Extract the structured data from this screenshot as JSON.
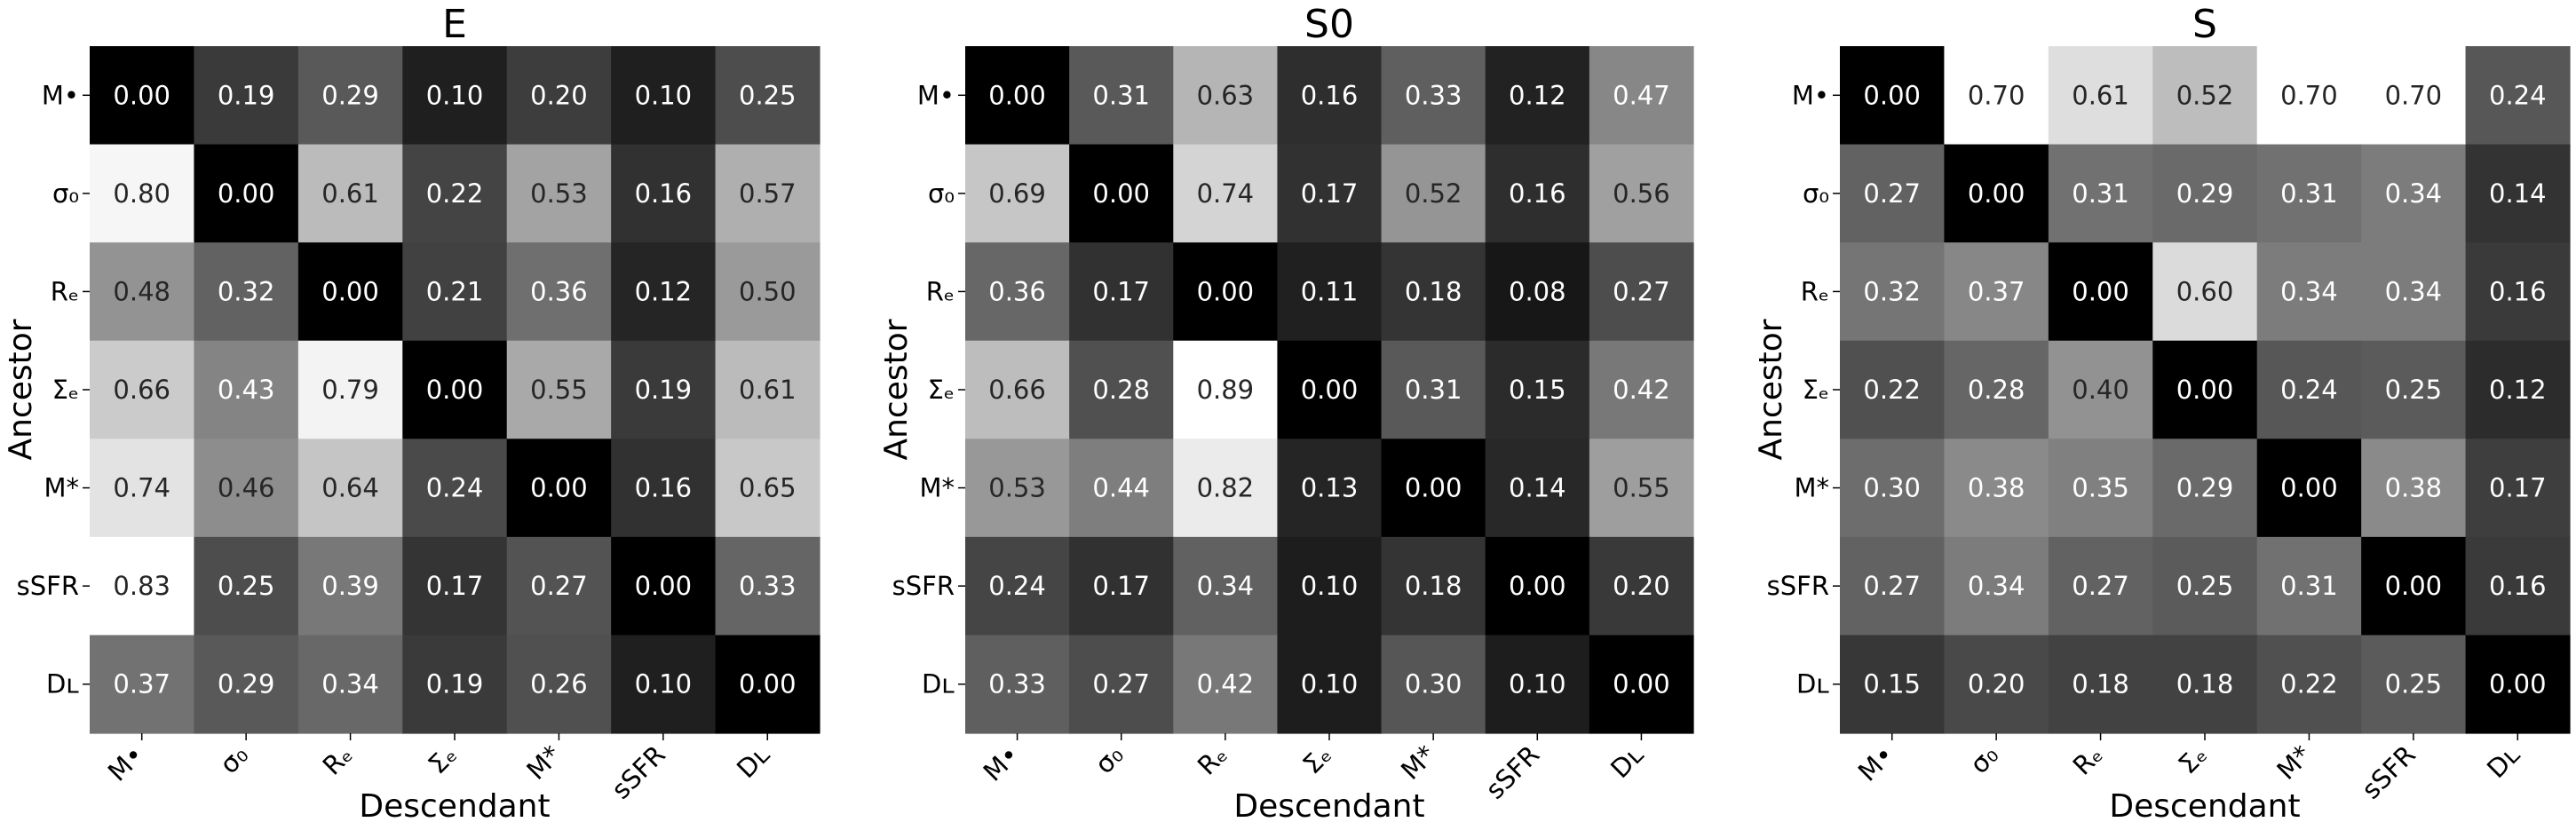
{
  "chart_data": [
    {
      "type": "heatmap",
      "title": "E",
      "xlabel": "Descendant",
      "ylabel": "Ancestor",
      "x_tick_labels": [
        "M•",
        "σ₀",
        "Rₑ",
        "Σₑ",
        "M*",
        "sSFR",
        "Dʟ"
      ],
      "y_tick_labels": [
        "M•",
        "σ₀",
        "Rₑ",
        "Σₑ",
        "M*",
        "sSFR",
        "Dʟ"
      ],
      "values": [
        [
          0.0,
          0.19,
          0.29,
          0.1,
          0.2,
          0.1,
          0.25
        ],
        [
          0.8,
          0.0,
          0.61,
          0.22,
          0.53,
          0.16,
          0.57
        ],
        [
          0.48,
          0.32,
          0.0,
          0.21,
          0.36,
          0.12,
          0.5
        ],
        [
          0.66,
          0.43,
          0.79,
          0.0,
          0.55,
          0.19,
          0.61
        ],
        [
          0.74,
          0.46,
          0.64,
          0.24,
          0.0,
          0.16,
          0.65
        ],
        [
          0.83,
          0.25,
          0.39,
          0.17,
          0.27,
          0.0,
          0.33
        ],
        [
          0.37,
          0.29,
          0.34,
          0.19,
          0.26,
          0.1,
          0.0
        ]
      ],
      "colormap": "grayscale"
    },
    {
      "type": "heatmap",
      "title": "S0",
      "xlabel": "Descendant",
      "ylabel": "Ancestor",
      "x_tick_labels": [
        "M•",
        "σ₀",
        "Rₑ",
        "Σₑ",
        "M*",
        "sSFR",
        "Dʟ"
      ],
      "y_tick_labels": [
        "M•",
        "σ₀",
        "Rₑ",
        "Σₑ",
        "M*",
        "sSFR",
        "Dʟ"
      ],
      "values": [
        [
          0.0,
          0.31,
          0.63,
          0.16,
          0.33,
          0.12,
          0.47
        ],
        [
          0.69,
          0.0,
          0.74,
          0.17,
          0.52,
          0.16,
          0.56
        ],
        [
          0.36,
          0.17,
          0.0,
          0.11,
          0.18,
          0.08,
          0.27
        ],
        [
          0.66,
          0.28,
          0.89,
          0.0,
          0.31,
          0.15,
          0.42
        ],
        [
          0.53,
          0.44,
          0.82,
          0.13,
          0.0,
          0.14,
          0.55
        ],
        [
          0.24,
          0.17,
          0.34,
          0.1,
          0.18,
          0.0,
          0.2
        ],
        [
          0.33,
          0.27,
          0.42,
          0.1,
          0.3,
          0.1,
          0.0
        ]
      ],
      "colormap": "grayscale"
    },
    {
      "type": "heatmap",
      "title": "S",
      "xlabel": "Descendant",
      "ylabel": "Ancestor",
      "x_tick_labels": [
        "M•",
        "σ₀",
        "Rₑ",
        "Σₑ",
        "M*",
        "sSFR",
        "Dʟ"
      ],
      "y_tick_labels": [
        "M•",
        "σ₀",
        "Rₑ",
        "Σₑ",
        "M*",
        "sSFR",
        "Dʟ"
      ],
      "values": [
        [
          0.0,
          0.7,
          0.61,
          0.52,
          0.7,
          0.7,
          0.24
        ],
        [
          0.27,
          0.0,
          0.31,
          0.29,
          0.31,
          0.34,
          0.14
        ],
        [
          0.32,
          0.37,
          0.0,
          0.6,
          0.34,
          0.34,
          0.16
        ],
        [
          0.22,
          0.28,
          0.4,
          0.0,
          0.24,
          0.25,
          0.12
        ],
        [
          0.3,
          0.38,
          0.35,
          0.29,
          0.0,
          0.38,
          0.17
        ],
        [
          0.27,
          0.34,
          0.27,
          0.25,
          0.31,
          0.0,
          0.16
        ],
        [
          0.15,
          0.2,
          0.18,
          0.18,
          0.22,
          0.25,
          0.0
        ]
      ],
      "colormap": "grayscale"
    }
  ]
}
